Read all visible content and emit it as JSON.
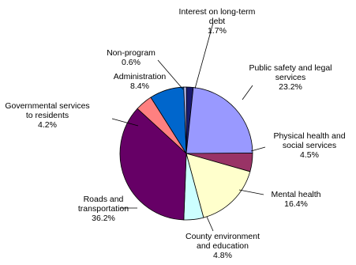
{
  "chart_data": {
    "type": "pie",
    "title": "",
    "slices": [
      {
        "lines": [
          "Interest on long-term",
          "debt"
        ],
        "pct_label": "1.7%",
        "value": 1.7,
        "color": "#1a1a6e"
      },
      {
        "lines": [
          "Public safety and legal",
          "services"
        ],
        "pct_label": "23.2%",
        "value": 23.2,
        "color": "#9999ff"
      },
      {
        "lines": [
          "Physical health and",
          "social services"
        ],
        "pct_label": "4.5%",
        "value": 4.5,
        "color": "#993366"
      },
      {
        "lines": [
          "Mental health"
        ],
        "pct_label": "16.4%",
        "value": 16.4,
        "color": "#ffffcc"
      },
      {
        "lines": [
          "County environment",
          "and education"
        ],
        "pct_label": "4.8%",
        "value": 4.8,
        "color": "#ccffff"
      },
      {
        "lines": [
          "Roads and",
          "transportation"
        ],
        "pct_label": "36.2%",
        "value": 36.2,
        "color": "#660066"
      },
      {
        "lines": [
          "Governmental services",
          "to residents"
        ],
        "pct_label": "4.2%",
        "value": 4.2,
        "color": "#ff8080"
      },
      {
        "lines": [
          "Administration"
        ],
        "pct_label": "8.4%",
        "value": 8.4,
        "color": "#0066cc"
      },
      {
        "lines": [
          "Non-program"
        ],
        "pct_label": "0.6%",
        "value": 0.6,
        "color": "#ccccff"
      }
    ],
    "legend": "none",
    "label_style": "outside labels with leader lines"
  }
}
